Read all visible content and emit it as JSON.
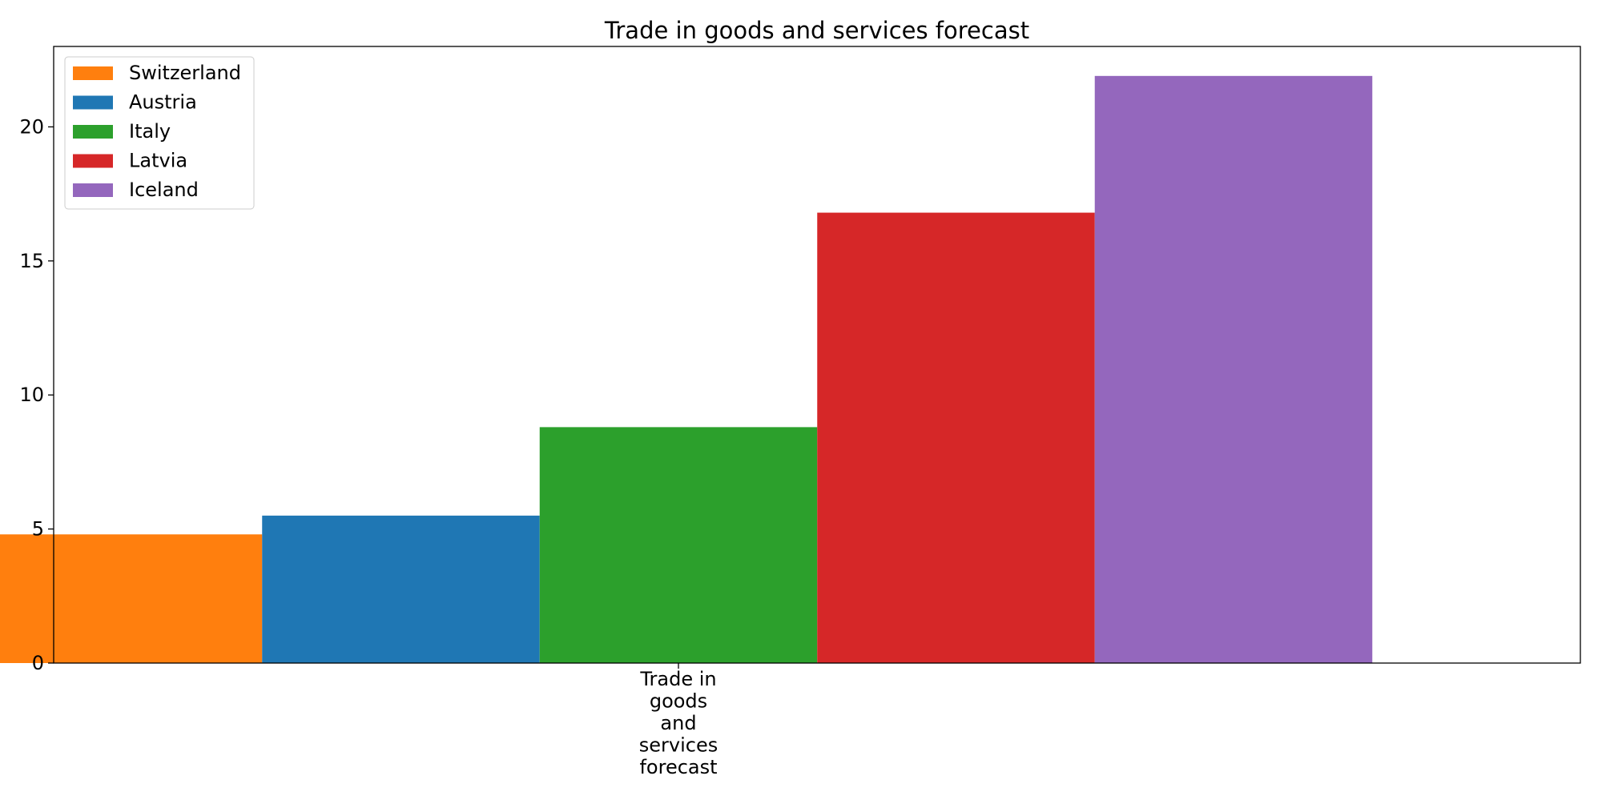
{
  "chart_data": {
    "type": "bar",
    "title": "Trade in goods and services forecast",
    "xlabel": "",
    "ylabel": "",
    "categories": [
      "Trade in goods and services forecast"
    ],
    "category_label_lines": [
      "Trade in",
      "goods",
      "and",
      "services",
      "forecast"
    ],
    "series": [
      {
        "name": "Switzerland",
        "values": [
          4.8
        ],
        "color": "#ff7f0e"
      },
      {
        "name": "Austria",
        "values": [
          5.5
        ],
        "color": "#1f77b4"
      },
      {
        "name": "Italy",
        "values": [
          8.8
        ],
        "color": "#2ca02c"
      },
      {
        "name": "Latvia",
        "values": [
          16.8
        ],
        "color": "#d62728"
      },
      {
        "name": "Iceland",
        "values": [
          21.9
        ],
        "color": "#9467bd"
      }
    ],
    "ylim": [
      0,
      23
    ],
    "yticks": [
      0,
      5,
      10,
      15,
      20
    ],
    "grid": false,
    "legend_position": "top-left"
  }
}
